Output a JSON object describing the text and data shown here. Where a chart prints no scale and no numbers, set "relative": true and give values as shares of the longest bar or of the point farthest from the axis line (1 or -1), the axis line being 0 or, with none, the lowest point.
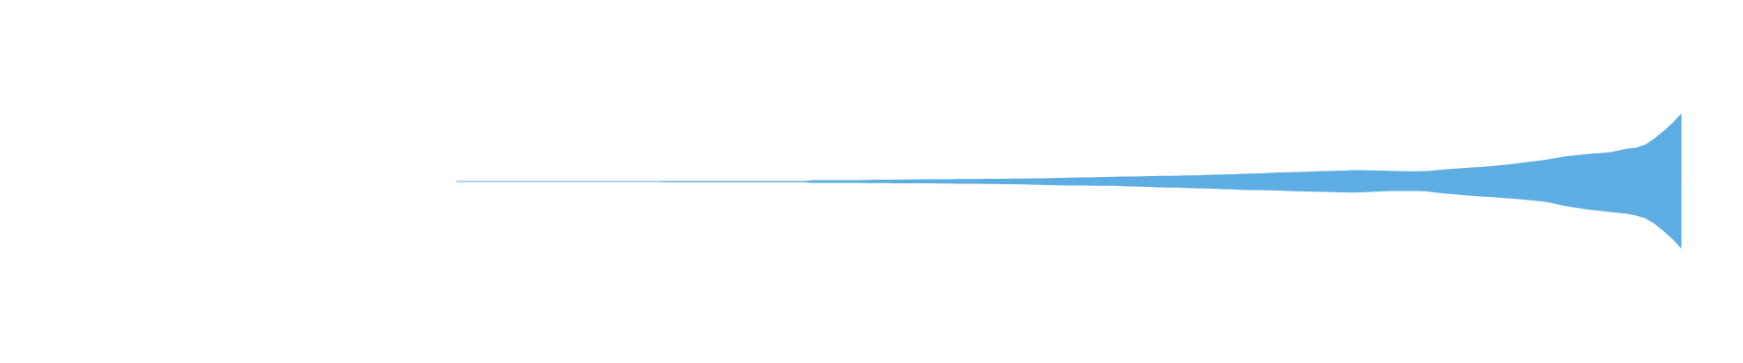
{
  "chart_data": {
    "type": "area",
    "relative": true,
    "categories": [
      null,
      null,
      null,
      null,
      null,
      null,
      null,
      null,
      null,
      null,
      null,
      null,
      null,
      null,
      null,
      null,
      null,
      null,
      null,
      null,
      null,
      null,
      null,
      null,
      null,
      null,
      null,
      null,
      null,
      null,
      null,
      null,
      null,
      null,
      null,
      null,
      null,
      null,
      null,
      null,
      null,
      null,
      null,
      null,
      null,
      null,
      null,
      null,
      null,
      null,
      null,
      null,
      null,
      null,
      null,
      null,
      null,
      null,
      null,
      null,
      null,
      null,
      null,
      null,
      null,
      null,
      null,
      null,
      null,
      null,
      null,
      null,
      null,
      null,
      null,
      null,
      null,
      null,
      null,
      null,
      null,
      null,
      null,
      null,
      null,
      null,
      null,
      null,
      null,
      null,
      null,
      null,
      null,
      null,
      null,
      null,
      null,
      null,
      null,
      null,
      null,
      null,
      null,
      null,
      null,
      null,
      null,
      null,
      null,
      null,
      null,
      null,
      null,
      null,
      null,
      null,
      null,
      null,
      null,
      null,
      null,
      null,
      null,
      null,
      null,
      null,
      null,
      null,
      null,
      null,
      null,
      null,
      null,
      null,
      null
    ],
    "series": [
      {
        "color": "#5dade2",
        "values": [
          0,
          0,
          0,
          0,
          0,
          0,
          0,
          0,
          0,
          0,
          0,
          0,
          0,
          0,
          0,
          0,
          0,
          0,
          0,
          0,
          0,
          0,
          0,
          0,
          0,
          0,
          0,
          0,
          0,
          0,
          0,
          0,
          0,
          0,
          0,
          0,
          0,
          0,
          0,
          0.02,
          0.02,
          0.02,
          0.02,
          0.02,
          0.02,
          0.023,
          0.025,
          0.026,
          0.028,
          0.029,
          0.03,
          0.032,
          0.033,
          0.033,
          0.034,
          0.036,
          0.037,
          0.038,
          0.04,
          0.04,
          0.041,
          0.042,
          0.042,
          0.045,
          0.048,
          0.05,
          0.053,
          0.056,
          0.058,
          0.061,
          0.064,
          0.066,
          0.069,
          0.072,
          0.074,
          0.077,
          0.079,
          0.082,
          0.083,
          0.086,
          0.089,
          0.091,
          0.095,
          0.099,
          0.103,
          0.107,
          0.113,
          0.117,
          0.119,
          0.126,
          0.131,
          0.135,
          0.139,
          0.144,
          0.148,
          0.152,
          0.156,
          0.16,
          0.166,
          0.166,
          0.163,
          0.16,
          0.156,
          0.152,
          0.15,
          0.148,
          0.152,
          0.163,
          0.176,
          0.185,
          0.195,
          0.204,
          0.213,
          0.223,
          0.236,
          0.25,
          0.265,
          0.281,
          0.298,
          0.315,
          0.338,
          0.362,
          0.377,
          0.391,
          0.404,
          0.413,
          0.424,
          0.449,
          0.479,
          0.493,
          0.536,
          0.625,
          0.735,
          0.854,
          1
        ]
      },
      {
        "color": "#5eaee3",
        "values": [
          0,
          0,
          0,
          0,
          0,
          0,
          0,
          0,
          0,
          0,
          0,
          0,
          0,
          0,
          0,
          0,
          0,
          0,
          0,
          0,
          0,
          0,
          0,
          -0.013,
          -0.013,
          -0.013,
          -0.013,
          -0.013,
          -0.013,
          -0.013,
          -0.013,
          -0.013,
          -0.013,
          -0.013,
          -0.013,
          -0.013,
          -0.013,
          -0.013,
          -0.013,
          -0.02,
          -0.02,
          -0.02,
          -0.02,
          -0.02,
          -0.02,
          -0.023,
          -0.024,
          -0.024,
          -0.025,
          -0.026,
          -0.026,
          -0.028,
          -0.028,
          -0.029,
          -0.03,
          -0.032,
          -0.033,
          -0.034,
          -0.037,
          -0.038,
          -0.04,
          -0.041,
          -0.042,
          -0.045,
          -0.049,
          -0.053,
          -0.056,
          -0.06,
          -0.06,
          -0.061,
          -0.062,
          -0.064,
          -0.064,
          -0.068,
          -0.072,
          -0.077,
          -0.081,
          -0.086,
          -0.089,
          -0.091,
          -0.095,
          -0.099,
          -0.103,
          -0.107,
          -0.113,
          -0.117,
          -0.121,
          -0.126,
          -0.126,
          -0.13,
          -0.134,
          -0.138,
          -0.142,
          -0.146,
          -0.148,
          -0.151,
          -0.155,
          -0.158,
          -0.162,
          -0.159,
          -0.152,
          -0.146,
          -0.139,
          -0.139,
          -0.139,
          -0.139,
          -0.144,
          -0.159,
          -0.175,
          -0.187,
          -0.199,
          -0.209,
          -0.217,
          -0.225,
          -0.234,
          -0.244,
          -0.254,
          -0.268,
          -0.281,
          -0.294,
          -0.322,
          -0.351,
          -0.374,
          -0.395,
          -0.413,
          -0.428,
          -0.444,
          -0.457,
          -0.47,
          -0.497,
          -0.536,
          -0.616,
          -0.722,
          -0.841,
          -0.987
        ]
      }
    ],
    "ref_lines": [
      {
        "axis": "y",
        "value": 0,
        "color": "#5dade2"
      }
    ]
  }
}
